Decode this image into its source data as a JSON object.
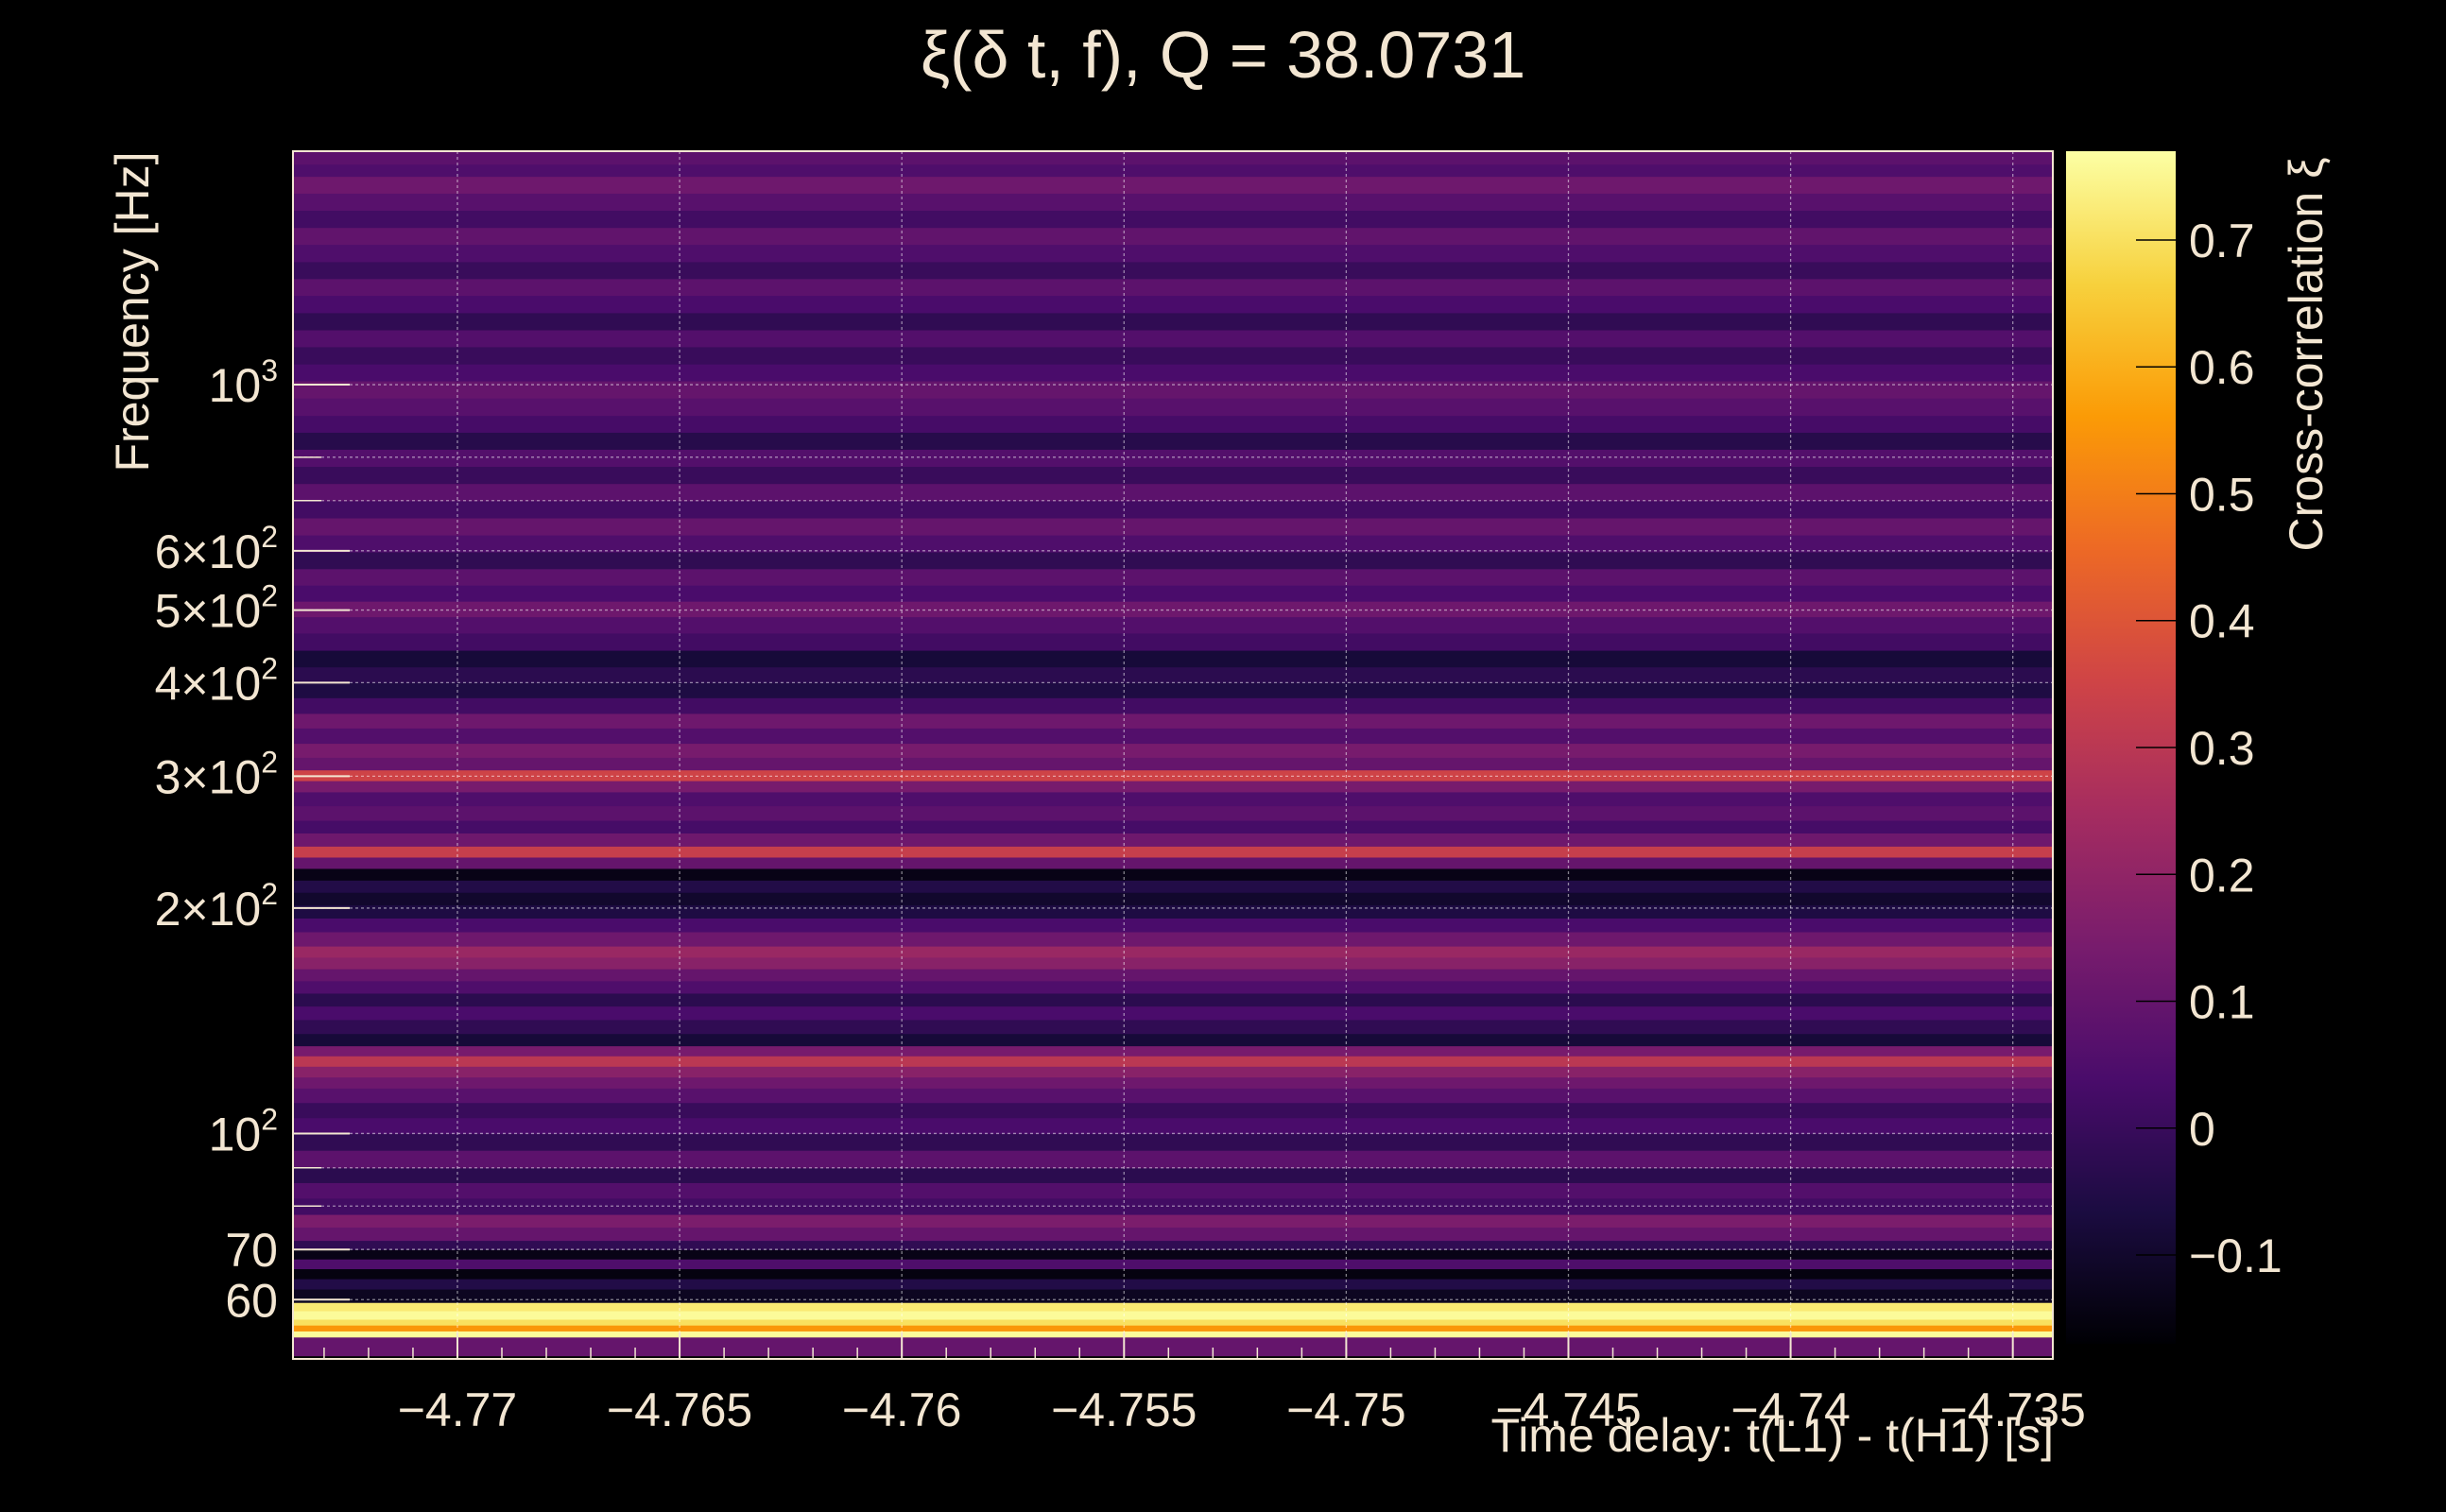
{
  "chart_data": {
    "type": "heatmap",
    "title": "ξ(δ t, f), Q = 38.0731",
    "xlabel": "Time delay: t(L1) - t(H1) [s]",
    "ylabel": "Frequency [Hz]",
    "colorbar_label": "Cross-correlation ξ",
    "xlim": [
      -4.7737,
      -4.7341
    ],
    "ylim": [
      50,
      2050
    ],
    "yscale": "log",
    "grid": true,
    "x_ticks": [
      -4.77,
      -4.765,
      -4.76,
      -4.755,
      -4.75,
      -4.745,
      -4.74,
      -4.735
    ],
    "x_tick_labels": [
      "−4.77",
      "−4.765",
      "−4.76",
      "−4.755",
      "−4.75",
      "−4.745",
      "−4.74",
      "−4.735"
    ],
    "y_ticks": [
      {
        "value": 1000,
        "mant": "10",
        "exp": "3"
      },
      {
        "value": 600,
        "mant": "6×10",
        "exp": "2"
      },
      {
        "value": 500,
        "mant": "5×10",
        "exp": "2"
      },
      {
        "value": 400,
        "mant": "4×10",
        "exp": "2"
      },
      {
        "value": 300,
        "mant": "3×10",
        "exp": "2"
      },
      {
        "value": 200,
        "mant": "2×10",
        "exp": "2"
      },
      {
        "value": 100,
        "mant": "10",
        "exp": "2"
      },
      {
        "value": 70,
        "mant": "70",
        "exp": ""
      },
      {
        "value": 60,
        "mant": "60",
        "exp": ""
      }
    ],
    "y_minor_ticks": [
      90,
      80,
      800,
      700
    ],
    "colorbar": {
      "min": -0.17,
      "max": 0.77,
      "ticks": [
        0.7,
        0.6,
        0.5,
        0.4,
        0.3,
        0.2,
        0.1,
        0,
        -0.1
      ],
      "tick_labels": [
        "0.7",
        "0.6",
        "0.5",
        "0.4",
        "0.3",
        "0.2",
        "0.1",
        "0",
        "−0.1"
      ],
      "colormap": "inferno",
      "colors": [
        "#000004",
        "#1b0c41",
        "#4a0c6b",
        "#781c6d",
        "#a52c60",
        "#cf4446",
        "#ed6925",
        "#fb9b06",
        "#f7d13d",
        "#fcffa4"
      ]
    },
    "rows": [
      {
        "f_low": 50.5,
        "f_high": 53.5,
        "xi": 0.1
      },
      {
        "f_low": 53.5,
        "f_high": 54.5,
        "xi": 0.76
      },
      {
        "f_low": 54.5,
        "f_high": 55.5,
        "xi": 0.55
      },
      {
        "f_low": 55.5,
        "f_high": 56.5,
        "xi": 0.7
      },
      {
        "f_low": 56.5,
        "f_high": 58,
        "xi": 0.76
      },
      {
        "f_low": 58,
        "f_high": 59.5,
        "xi": 0.72
      },
      {
        "f_low": 59.5,
        "f_high": 62,
        "xi": -0.12
      },
      {
        "f_low": 62,
        "f_high": 64,
        "xi": -0.05
      },
      {
        "f_low": 64,
        "f_high": 66,
        "xi": -0.15
      },
      {
        "f_low": 66,
        "f_high": 68,
        "xi": 0.05
      },
      {
        "f_low": 68,
        "f_high": 70,
        "xi": -0.14
      },
      {
        "f_low": 70,
        "f_high": 72,
        "xi": -0.02
      },
      {
        "f_low": 72,
        "f_high": 75,
        "xi": 0.1
      },
      {
        "f_low": 75,
        "f_high": 78,
        "xi": 0.15
      },
      {
        "f_low": 78,
        "f_high": 82,
        "xi": 0.02
      },
      {
        "f_low": 82,
        "f_high": 86,
        "xi": 0.06
      },
      {
        "f_low": 86,
        "f_high": 90,
        "xi": -0.03
      },
      {
        "f_low": 90,
        "f_high": 95,
        "xi": 0.08
      },
      {
        "f_low": 95,
        "f_high": 100,
        "xi": -0.02
      },
      {
        "f_low": 100,
        "f_high": 105,
        "xi": 0.04
      },
      {
        "f_low": 105,
        "f_high": 110,
        "xi": 0.0
      },
      {
        "f_low": 110,
        "f_high": 115,
        "xi": 0.07
      },
      {
        "f_low": 115,
        "f_high": 119,
        "xi": 0.12
      },
      {
        "f_low": 119,
        "f_high": 123,
        "xi": 0.18
      },
      {
        "f_low": 123,
        "f_high": 127,
        "xi": 0.3
      },
      {
        "f_low": 127,
        "f_high": 131,
        "xi": 0.14
      },
      {
        "f_low": 131,
        "f_high": 136,
        "xi": -0.08
      },
      {
        "f_low": 136,
        "f_high": 142,
        "xi": -0.02
      },
      {
        "f_low": 142,
        "f_high": 148,
        "xi": 0.04
      },
      {
        "f_low": 148,
        "f_high": 154,
        "xi": -0.03
      },
      {
        "f_low": 154,
        "f_high": 160,
        "xi": 0.05
      },
      {
        "f_low": 160,
        "f_high": 166,
        "xi": 0.1
      },
      {
        "f_low": 166,
        "f_high": 172,
        "xi": 0.18
      },
      {
        "f_low": 172,
        "f_high": 178,
        "xi": 0.22
      },
      {
        "f_low": 178,
        "f_high": 186,
        "xi": 0.12
      },
      {
        "f_low": 186,
        "f_high": 194,
        "xi": 0.04
      },
      {
        "f_low": 194,
        "f_high": 202,
        "xi": -0.06
      },
      {
        "f_low": 202,
        "f_high": 210,
        "xi": -0.1
      },
      {
        "f_low": 210,
        "f_high": 218,
        "xi": -0.05
      },
      {
        "f_low": 218,
        "f_high": 226,
        "xi": -0.14
      },
      {
        "f_low": 226,
        "f_high": 234,
        "xi": 0.1
      },
      {
        "f_low": 234,
        "f_high": 242,
        "xi": 0.33
      },
      {
        "f_low": 242,
        "f_high": 252,
        "xi": 0.12
      },
      {
        "f_low": 252,
        "f_high": 262,
        "xi": 0.03
      },
      {
        "f_low": 262,
        "f_high": 274,
        "xi": 0.08
      },
      {
        "f_low": 274,
        "f_high": 286,
        "xi": 0.05
      },
      {
        "f_low": 286,
        "f_high": 296,
        "xi": 0.14
      },
      {
        "f_low": 296,
        "f_high": 306,
        "xi": 0.35
      },
      {
        "f_low": 306,
        "f_high": 318,
        "xi": 0.1
      },
      {
        "f_low": 318,
        "f_high": 332,
        "xi": 0.14
      },
      {
        "f_low": 332,
        "f_high": 348,
        "xi": 0.06
      },
      {
        "f_low": 348,
        "f_high": 364,
        "xi": 0.12
      },
      {
        "f_low": 364,
        "f_high": 382,
        "xi": 0.02
      },
      {
        "f_low": 382,
        "f_high": 400,
        "xi": -0.06
      },
      {
        "f_low": 400,
        "f_high": 420,
        "xi": -0.03
      },
      {
        "f_low": 420,
        "f_high": 442,
        "xi": -0.08
      },
      {
        "f_low": 442,
        "f_high": 466,
        "xi": 0.02
      },
      {
        "f_low": 466,
        "f_high": 490,
        "xi": 0.06
      },
      {
        "f_low": 490,
        "f_high": 514,
        "xi": 0.12
      },
      {
        "f_low": 514,
        "f_high": 540,
        "xi": 0.04
      },
      {
        "f_low": 540,
        "f_high": 568,
        "xi": 0.08
      },
      {
        "f_low": 568,
        "f_high": 598,
        "xi": -0.02
      },
      {
        "f_low": 598,
        "f_high": 630,
        "xi": 0.05
      },
      {
        "f_low": 630,
        "f_high": 664,
        "xi": 0.1
      },
      {
        "f_low": 664,
        "f_high": 700,
        "xi": 0.02
      },
      {
        "f_low": 700,
        "f_high": 738,
        "xi": 0.08
      },
      {
        "f_low": 738,
        "f_high": 778,
        "xi": 0.0
      },
      {
        "f_low": 778,
        "f_high": 820,
        "xi": 0.06
      },
      {
        "f_low": 820,
        "f_high": 864,
        "xi": -0.04
      },
      {
        "f_low": 864,
        "f_high": 910,
        "xi": 0.03
      },
      {
        "f_low": 910,
        "f_high": 960,
        "xi": 0.07
      },
      {
        "f_low": 960,
        "f_high": 1012,
        "xi": 0.1
      },
      {
        "f_low": 1012,
        "f_high": 1066,
        "xi": 0.04
      },
      {
        "f_low": 1066,
        "f_high": 1124,
        "xi": 0.0
      },
      {
        "f_low": 1124,
        "f_high": 1184,
        "xi": 0.06
      },
      {
        "f_low": 1184,
        "f_high": 1248,
        "xi": -0.02
      },
      {
        "f_low": 1248,
        "f_high": 1316,
        "xi": 0.04
      },
      {
        "f_low": 1316,
        "f_high": 1386,
        "xi": 0.08
      },
      {
        "f_low": 1386,
        "f_high": 1460,
        "xi": 0.0
      },
      {
        "f_low": 1460,
        "f_high": 1540,
        "xi": 0.05
      },
      {
        "f_low": 1540,
        "f_high": 1622,
        "xi": 0.09
      },
      {
        "f_low": 1622,
        "f_high": 1710,
        "xi": 0.02
      },
      {
        "f_low": 1710,
        "f_high": 1802,
        "xi": 0.07
      },
      {
        "f_low": 1802,
        "f_high": 1898,
        "xi": 0.12
      },
      {
        "f_low": 1898,
        "f_high": 1970,
        "xi": 0.05
      },
      {
        "f_low": 1970,
        "f_high": 2050,
        "xi": 0.08
      }
    ]
  }
}
